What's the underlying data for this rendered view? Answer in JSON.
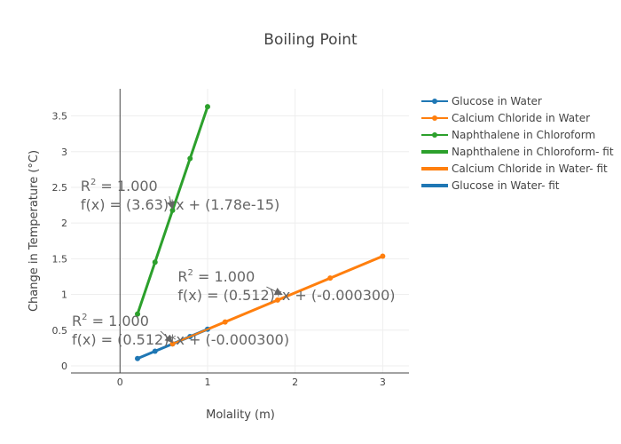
{
  "chart_data": {
    "type": "line",
    "title": "Boiling Point",
    "xlabel": "Molality (m)",
    "ylabel": "Change in Temperature (°C)",
    "xlim": [
      -0.56,
      3.3
    ],
    "ylim": [
      -0.1,
      3.88
    ],
    "x_ticks": [
      0,
      1,
      2,
      3
    ],
    "x_tick_labels": [
      "0",
      "1",
      "2",
      "3"
    ],
    "y_ticks": [
      0,
      0.5,
      1,
      1.5,
      2,
      2.5,
      3,
      3.5
    ],
    "y_tick_labels": [
      "0",
      "0.5",
      "1",
      "1.5",
      "2",
      "2.5",
      "3",
      "3.5"
    ],
    "grid": true,
    "legend_position": "top-right",
    "series": [
      {
        "name": "Glucose in Water",
        "mode": "lines+markers",
        "color": "#1f77b4",
        "x": [
          0.2,
          0.4,
          0.6,
          0.8,
          1.0
        ],
        "y": [
          0.102,
          0.205,
          0.307,
          0.41,
          0.512
        ]
      },
      {
        "name": "Calcium Chloride in Water",
        "mode": "lines+markers",
        "color": "#ff7f0e",
        "x": [
          0.6,
          1.2,
          1.8,
          2.4,
          3.0
        ],
        "y": [
          0.307,
          0.614,
          0.922,
          1.229,
          1.536
        ]
      },
      {
        "name": "Naphthalene in Chloroform",
        "mode": "lines+markers",
        "color": "#2ca02c",
        "x": [
          0.2,
          0.4,
          0.6,
          0.8,
          1.0
        ],
        "y": [
          0.726,
          1.452,
          2.178,
          2.904,
          3.63
        ]
      },
      {
        "name": "Naphthalene in Chloroform- fit",
        "mode": "lines",
        "color": "#2ca02c",
        "x": [
          0.2,
          1.0
        ],
        "y": [
          0.726,
          3.63
        ]
      },
      {
        "name": "Calcium Chloride in Water- fit",
        "mode": "lines",
        "color": "#ff7f0e",
        "x": [
          0.6,
          3.0
        ],
        "y": [
          0.307,
          1.536
        ]
      },
      {
        "name": "Glucose in Water- fit",
        "mode": "lines",
        "color": "#1f77b4",
        "x": [
          0.2,
          1.0
        ],
        "y": [
          0.102,
          0.512
        ]
      }
    ],
    "annotations": [
      {
        "r2_label": "R",
        "r2_sup": "2",
        "r2_value": " = 1.000",
        "equation": "f(x) = (3.63)*x + (1.78e-15)",
        "arrow_x": 0.6,
        "arrow_y": 2.2,
        "text_x": -0.45,
        "text_y": 2.45
      },
      {
        "r2_label": "R",
        "r2_sup": "2",
        "r2_value": " = 1.000",
        "equation": "f(x) = (0.512)*x + (-0.000300)",
        "arrow_x": 1.85,
        "arrow_y": 1.0,
        "text_x": 0.66,
        "text_y": 1.18
      },
      {
        "r2_label": "R",
        "r2_sup": "2",
        "r2_value": " = 1.000",
        "equation": "f(x) = (0.512)*x + (-0.000300)",
        "arrow_x": 0.6,
        "arrow_y": 0.33,
        "text_x": -0.55,
        "text_y": 0.56
      }
    ]
  }
}
